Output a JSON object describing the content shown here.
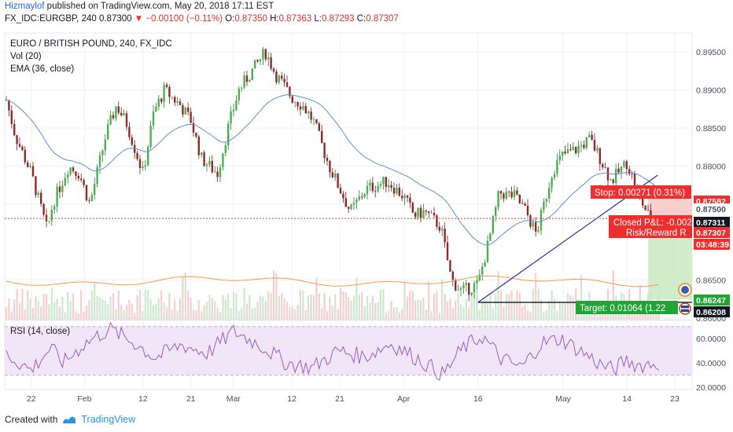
{
  "publish": {
    "user": "Hizmaylof",
    "text": " published on TradingView.com, May 20, 2018 17:11 EST"
  },
  "ohlc": {
    "symbol": "FX_IDC:EURGBP, 240",
    "last": "0.87300",
    "change": "−0.00100 (−0.11%)",
    "o_label": "O:",
    "o": "0.87350",
    "h_label": "H:",
    "h": "0.87363",
    "l_label": "L:",
    "l": "0.87293",
    "c_label": "C:",
    "c": "0.87307"
  },
  "legend": {
    "title": "EURO / BRITISH POUND, 240, FX_IDC",
    "vol": "Vol (20)",
    "ema": "EMA (36, close)",
    "rsi": "RSI (14, close)"
  },
  "colors": {
    "up": "#26a69a",
    "down": "#ef5350",
    "candle_up_body": "#4caf50",
    "candle_down_body": "#8b2b2b",
    "ema": "#5b8fd6",
    "vol_up": "#cde8cf",
    "vol_down": "#f3cfcf",
    "vol_ma": "#f59a4a",
    "rsi": "#9c5cc9",
    "rsi_band": "#f0e6f8",
    "stop_zone": "#f7c9c6",
    "target_zone": "#c9e9c0",
    "trendline": "#2a2aa8",
    "label_red": "#ef2f2f",
    "label_green": "#22a336",
    "label_dark": "#131722",
    "grid": "#eef0f3"
  },
  "chart_data": {
    "type": "candlestick",
    "title": "EURO / BRITISH POUND, 240, FX_IDC",
    "timeframe": "240",
    "price_axis": {
      "ylim": [
        0.8598,
        0.8975
      ],
      "ticks": [
        "0.89500",
        "0.89000",
        "0.88500",
        "0.88000",
        "0.87500",
        "0.86500",
        "0.86000"
      ],
      "tick_values": [
        0.895,
        0.89,
        0.885,
        0.88,
        0.875,
        0.865,
        0.86
      ]
    },
    "rsi_axis": {
      "ylim": [
        18,
        75
      ],
      "ticks": [
        "60.0000",
        "40.0000",
        "20.0000"
      ],
      "tick_values": [
        60,
        40,
        20
      ],
      "band": [
        30,
        70
      ]
    },
    "x_axis": {
      "labels": [
        "22",
        "Feb",
        "12",
        "21",
        "Mar",
        "12",
        "21",
        "Apr",
        "16",
        "May",
        "14",
        "23"
      ],
      "range_start": "Jan 17, 2018",
      "range_end": "May 23, 2018"
    },
    "price_path": [
      [
        "Jan 17",
        0.8895
      ],
      [
        "Jan 19",
        0.884
      ],
      [
        "Jan 22",
        0.879
      ],
      [
        "Jan 24",
        0.874
      ],
      [
        "Jan 25",
        0.8715
      ],
      [
        "Jan 26",
        0.875
      ],
      [
        "Jan 29",
        0.88
      ],
      [
        "Jan 31",
        0.879
      ],
      [
        "Feb 2",
        0.875
      ],
      [
        "Feb 5",
        0.884
      ],
      [
        "Feb 7",
        0.888
      ],
      [
        "Feb 9",
        0.8855
      ],
      [
        "Feb 12",
        0.879
      ],
      [
        "Feb 14",
        0.887
      ],
      [
        "Feb 16",
        0.89
      ],
      [
        "Feb 19",
        0.888
      ],
      [
        "Feb 21",
        0.886
      ],
      [
        "Feb 23",
        0.881
      ],
      [
        "Feb 26",
        0.879
      ],
      [
        "Feb 28",
        0.885
      ],
      [
        "Mar 2",
        0.89
      ],
      [
        "Mar 5",
        0.893
      ],
      [
        "Mar 7",
        0.895
      ],
      [
        "Mar 9",
        0.892
      ],
      [
        "Mar 12",
        0.889
      ],
      [
        "Mar 14",
        0.888
      ],
      [
        "Mar 16",
        0.886
      ],
      [
        "Mar 19",
        0.88
      ],
      [
        "Mar 21",
        0.877
      ],
      [
        "Mar 23",
        0.874
      ],
      [
        "Mar 26",
        0.877
      ],
      [
        "Mar 28",
        0.8775
      ],
      [
        "Mar 30",
        0.878
      ],
      [
        "Apr 2",
        0.876
      ],
      [
        "Apr 4",
        0.8735
      ],
      [
        "Apr 6",
        0.874
      ],
      [
        "Apr 9",
        0.872
      ],
      [
        "Apr 11",
        0.865
      ],
      [
        "Apr 13",
        0.8635
      ],
      [
        "Apr 16",
        0.8645
      ],
      [
        "Apr 18",
        0.87
      ],
      [
        "Apr 20",
        0.8765
      ],
      [
        "Apr 23",
        0.876
      ],
      [
        "Apr 25",
        0.874
      ],
      [
        "Apr 27",
        0.871
      ],
      [
        "Apr 30",
        0.8795
      ],
      [
        "May 2",
        0.8815
      ],
      [
        "May 4",
        0.882
      ],
      [
        "May 7",
        0.8835
      ],
      [
        "May 9",
        0.881
      ],
      [
        "May 11",
        0.878
      ],
      [
        "May 14",
        0.8805
      ],
      [
        "May 16",
        0.8765
      ],
      [
        "May 18",
        0.8735
      ],
      [
        "May 20",
        0.8731
      ]
    ],
    "rsi_path": [
      [
        0,
        48
      ],
      [
        0.04,
        34
      ],
      [
        0.07,
        52
      ],
      [
        0.09,
        40
      ],
      [
        0.12,
        55
      ],
      [
        0.16,
        68
      ],
      [
        0.2,
        56
      ],
      [
        0.23,
        44
      ],
      [
        0.27,
        55
      ],
      [
        0.31,
        48
      ],
      [
        0.35,
        66
      ],
      [
        0.39,
        55
      ],
      [
        0.43,
        40
      ],
      [
        0.47,
        36
      ],
      [
        0.51,
        50
      ],
      [
        0.55,
        45
      ],
      [
        0.59,
        56
      ],
      [
        0.63,
        44
      ],
      [
        0.67,
        30
      ],
      [
        0.7,
        52
      ],
      [
        0.73,
        62
      ],
      [
        0.76,
        43
      ],
      [
        0.79,
        36
      ],
      [
        0.82,
        56
      ],
      [
        0.85,
        60
      ],
      [
        0.88,
        50
      ],
      [
        0.91,
        39
      ],
      [
        0.93,
        34
      ],
      [
        0.95,
        42
      ],
      [
        0.97,
        38
      ],
      [
        1,
        40
      ]
    ],
    "price_labels": [
      {
        "text": "0.87582",
        "value": 0.87582,
        "style": "red"
      },
      {
        "text": "0.87500",
        "value": 0.875,
        "style": "plain"
      },
      {
        "text": "0.87311",
        "value": 0.87311,
        "style": "dark"
      },
      {
        "text": "0.87307",
        "value": 0.87307,
        "style": "red"
      },
      {
        "text": "03:48:39",
        "value": 0.8718,
        "style": "red"
      },
      {
        "text": "0.86247",
        "value": 0.86247,
        "style": "green"
      },
      {
        "text": "0.86208",
        "value": 0.86208,
        "style": "dark"
      }
    ],
    "annotations": {
      "stop": "Stop: 0.00271 (0.31%)",
      "closed_pnl": "Closed P&L: -0.002",
      "risk_reward": "Risk/Reward R",
      "target": "Target: 0.01064 (1.22",
      "entry_price": 0.87311,
      "stop_price": 0.87582,
      "target_price": 0.86247,
      "trendline_start": [
        "Apr 16",
        0.86208
      ],
      "trendline_end": [
        "May 18",
        0.8788
      ]
    }
  },
  "footer": {
    "created_with": "Created with",
    "brand": "TradingView"
  }
}
